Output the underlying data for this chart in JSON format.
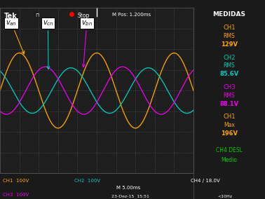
{
  "title_left": "Tek",
  "title_center": "Stop",
  "title_pos": "M Pos: 1.200ms",
  "medidas_label": "MEDIDAS",
  "ch1_label": "CH1",
  "ch1_rms": "RMS",
  "ch1_rms_val": "129V",
  "ch2_label": "CH2",
  "ch2_rms": "RMS",
  "ch2_rms_val": "85.6V",
  "ch3_label": "CH3",
  "ch3_rms": "RMS",
  "ch3_rms_val": "88.1V",
  "ch1_max_label": "CH1",
  "ch1_max": "Max",
  "ch1_max_val": "196V",
  "ch4_desl": "CH4 DESL",
  "ch4_medio": "Medio",
  "bottom_ch1": "CH1  100V",
  "bottom_ch2": "CH2  100V",
  "bottom_m": "M 5.00ms",
  "bottom_ch4": "CH4 / 18.0V",
  "bottom_ch3": "CH3  100V",
  "bottom_date": "23-Dez-15  15:51",
  "bottom_freq": "<10Hz",
  "bg_color": "#1a1a1a",
  "grid_color": "#555555",
  "osc_bg": "#1e1e1e",
  "ch1_color": "#FFA500",
  "ch2_color": "#00CCBB",
  "ch3_color": "#EE00EE",
  "side_bg": "#1a1a1a",
  "amplitude_ch1": 1.82,
  "amplitude_ch2": 1.1,
  "amplitude_ch3": 1.15,
  "phase_ch1": 0.0,
  "phase_ch2": 2.094395,
  "phase_ch3": -2.094395,
  "n_points": 2000,
  "period_divs": 4.0,
  "n_hdiv": 10,
  "label_van": "$v_{an}$",
  "label_vcn": "$v_{cn}$",
  "label_vbn": "$v_{bn}$"
}
